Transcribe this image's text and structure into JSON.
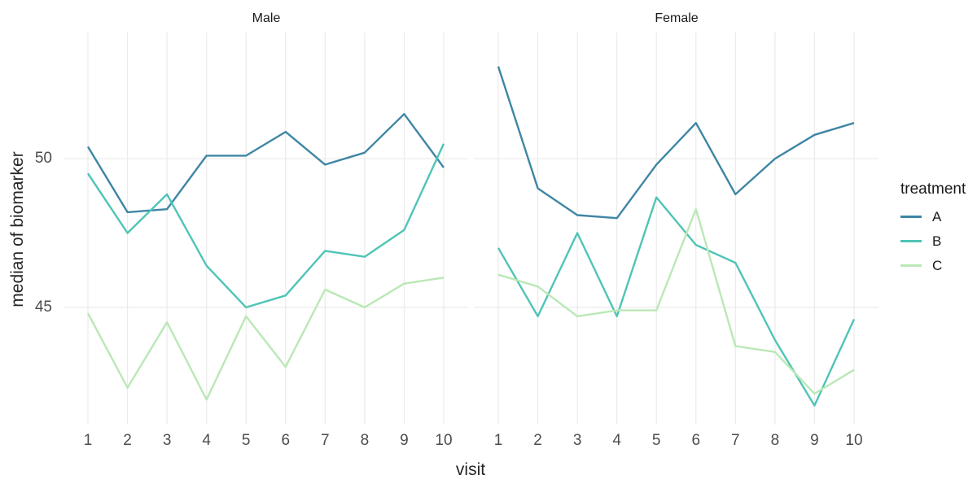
{
  "figure": {
    "background_color": "#ffffff",
    "grid_color": "#ebebeb",
    "axis_text_color": "#4d4d4d",
    "axis_title_color": "#262626",
    "strip_text_color": "#1a1a1a"
  },
  "axes": {
    "x_title": "visit",
    "y_title": "median of biomarker",
    "x_ticks": [
      "1",
      "2",
      "3",
      "4",
      "5",
      "6",
      "7",
      "8",
      "9",
      "10"
    ],
    "y_ticks": [
      "50",
      "45"
    ]
  },
  "legend": {
    "title": "treatment",
    "items": [
      {
        "label": "A",
        "color": "#3e86a4"
      },
      {
        "label": "B",
        "color": "#4fc4b6"
      },
      {
        "label": "C",
        "color": "#bae8b6"
      }
    ]
  },
  "chart_data": {
    "type": "line",
    "x": [
      1,
      2,
      3,
      4,
      5,
      6,
      7,
      8,
      9,
      10
    ],
    "xlabel": "visit",
    "ylabel": "median of biomarker",
    "ylim": [
      41.06,
      54.24
    ],
    "y_gridlines": [
      45,
      50
    ],
    "grid": "major-only",
    "legend_title": "treatment",
    "legend_position": "right",
    "facets": [
      {
        "label": "Male",
        "series": [
          {
            "name": "A",
            "color": "#3e86a4",
            "values": [
              50.4,
              48.2,
              48.3,
              50.1,
              50.1,
              50.9,
              49.8,
              50.2,
              51.5,
              49.7
            ]
          },
          {
            "name": "B",
            "color": "#4fc4b6",
            "values": [
              49.5,
              47.5,
              48.8,
              46.4,
              45.0,
              45.4,
              46.9,
              46.7,
              47.6,
              50.5
            ]
          },
          {
            "name": "C",
            "color": "#bae8b6",
            "values": [
              44.8,
              42.3,
              44.5,
              41.9,
              44.7,
              43.0,
              45.6,
              45.0,
              45.8,
              46.0
            ]
          }
        ]
      },
      {
        "label": "Female",
        "series": [
          {
            "name": "A",
            "color": "#3e86a4",
            "values": [
              53.1,
              49.0,
              48.1,
              48.0,
              49.8,
              51.2,
              48.8,
              50.0,
              50.8,
              51.2
            ]
          },
          {
            "name": "B",
            "color": "#4fc4b6",
            "values": [
              47.0,
              44.7,
              47.5,
              44.7,
              48.7,
              47.1,
              46.5,
              43.9,
              41.7,
              44.6
            ]
          },
          {
            "name": "C",
            "color": "#bae8b6",
            "values": [
              46.1,
              45.7,
              44.7,
              44.9,
              44.9,
              48.3,
              43.7,
              43.5,
              42.1,
              42.9
            ]
          }
        ]
      }
    ]
  }
}
